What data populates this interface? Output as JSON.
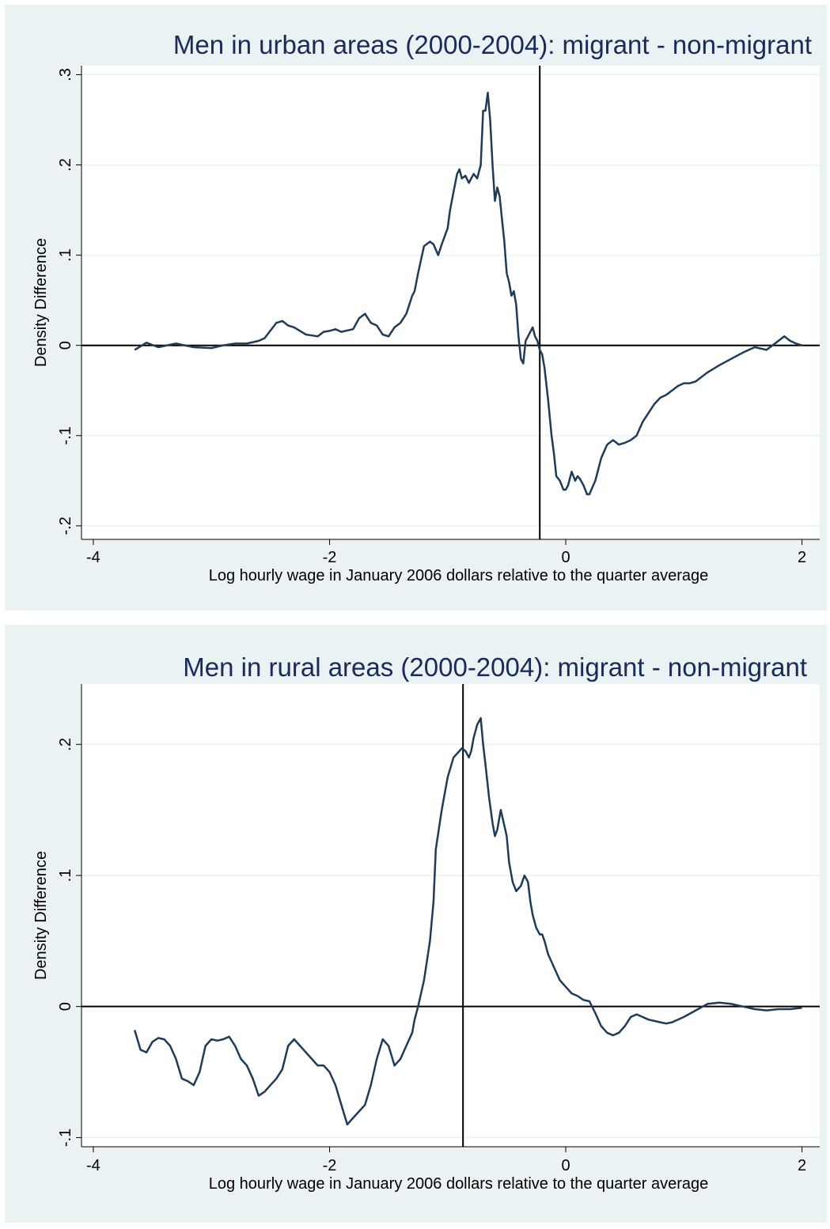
{
  "colors": {
    "background": "#eaf2f3",
    "plot": "#ffffff",
    "title": "#1a2a5a",
    "series": "#1f3b5a",
    "reference": "#000000"
  },
  "chart_data": [
    {
      "type": "line",
      "title": "Men in urban areas (2000-2004): migrant - non-migrant",
      "xlabel": "Log hourly wage in January 2006 dollars relative to the quarter average",
      "ylabel": "Density Difference",
      "xlim": [
        -4.1,
        2.15
      ],
      "ylim": [
        -0.215,
        0.31
      ],
      "xticks": [
        -4,
        -2,
        0,
        2
      ],
      "xtick_labels": [
        "-4",
        "-2",
        "0",
        "2"
      ],
      "yticks": [
        -0.2,
        -0.1,
        0,
        0.1,
        0.2,
        0.3
      ],
      "ytick_labels": [
        "-.2",
        "-.1",
        "0",
        ".1",
        ".2",
        ".3"
      ],
      "grid": true,
      "hline": 0,
      "vline": -0.22,
      "series": [
        {
          "x": [
            -3.65,
            -3.55,
            -3.45,
            -3.3,
            -3.15,
            -3.0,
            -2.9,
            -2.8,
            -2.7,
            -2.6,
            -2.55,
            -2.45,
            -2.4,
            -2.35,
            -2.3,
            -2.2,
            -2.1,
            -2.05,
            -2.0,
            -1.95,
            -1.9,
            -1.8,
            -1.75,
            -1.7,
            -1.65,
            -1.6,
            -1.55,
            -1.5,
            -1.45,
            -1.4,
            -1.35,
            -1.3,
            -1.28,
            -1.25,
            -1.2,
            -1.15,
            -1.12,
            -1.08,
            -1.05,
            -1.0,
            -0.98,
            -0.95,
            -0.92,
            -0.9,
            -0.88,
            -0.85,
            -0.82,
            -0.8,
            -0.78,
            -0.75,
            -0.72,
            -0.7,
            -0.68,
            -0.66,
            -0.64,
            -0.62,
            -0.6,
            -0.58,
            -0.56,
            -0.54,
            -0.52,
            -0.5,
            -0.48,
            -0.46,
            -0.44,
            -0.42,
            -0.4,
            -0.38,
            -0.36,
            -0.34,
            -0.32,
            -0.3,
            -0.28,
            -0.26,
            -0.24,
            -0.22,
            -0.2,
            -0.18,
            -0.15,
            -0.12,
            -0.1,
            -0.08,
            -0.05,
            -0.02,
            0.0,
            0.02,
            0.05,
            0.08,
            0.1,
            0.12,
            0.15,
            0.18,
            0.2,
            0.25,
            0.3,
            0.35,
            0.4,
            0.45,
            0.5,
            0.55,
            0.6,
            0.65,
            0.7,
            0.75,
            0.8,
            0.85,
            0.9,
            0.95,
            1.0,
            1.05,
            1.1,
            1.15,
            1.2,
            1.3,
            1.4,
            1.5,
            1.6,
            1.7,
            1.75,
            1.8,
            1.85,
            1.9,
            1.95,
            2.0
          ],
          "y": [
            -0.005,
            0.003,
            -0.002,
            0.002,
            -0.002,
            -0.003,
            0.0,
            0.002,
            0.002,
            0.005,
            0.008,
            0.025,
            0.027,
            0.022,
            0.02,
            0.012,
            0.01,
            0.015,
            0.016,
            0.018,
            0.015,
            0.018,
            0.03,
            0.035,
            0.025,
            0.022,
            0.012,
            0.01,
            0.02,
            0.025,
            0.035,
            0.055,
            0.06,
            0.08,
            0.11,
            0.115,
            0.112,
            0.1,
            0.112,
            0.13,
            0.15,
            0.17,
            0.19,
            0.195,
            0.185,
            0.188,
            0.18,
            0.185,
            0.19,
            0.185,
            0.2,
            0.26,
            0.26,
            0.28,
            0.25,
            0.2,
            0.16,
            0.175,
            0.165,
            0.14,
            0.115,
            0.08,
            0.07,
            0.055,
            0.06,
            0.045,
            0.01,
            -0.015,
            -0.02,
            0.005,
            0.01,
            0.015,
            0.02,
            0.01,
            0.005,
            -0.005,
            -0.01,
            -0.025,
            -0.06,
            -0.1,
            -0.12,
            -0.145,
            -0.15,
            -0.16,
            -0.16,
            -0.155,
            -0.14,
            -0.15,
            -0.145,
            -0.148,
            -0.155,
            -0.165,
            -0.165,
            -0.15,
            -0.125,
            -0.11,
            -0.105,
            -0.11,
            -0.108,
            -0.105,
            -0.1,
            -0.085,
            -0.075,
            -0.065,
            -0.058,
            -0.055,
            -0.05,
            -0.045,
            -0.042,
            -0.042,
            -0.04,
            -0.035,
            -0.03,
            -0.022,
            -0.015,
            -0.008,
            -0.002,
            -0.005,
            0.0,
            0.005,
            0.01,
            0.005,
            0.002,
            0.0
          ]
        }
      ]
    },
    {
      "type": "line",
      "title": "Men in rural areas (2000-2004): migrant - non-migrant",
      "xlabel": "Log hourly wage in January 2006 dollars relative to the quarter average",
      "ylabel": "Density Difference",
      "xlim": [
        -4.1,
        2.15
      ],
      "ylim": [
        -0.107,
        0.246
      ],
      "xticks": [
        -4,
        -2,
        0,
        2
      ],
      "xtick_labels": [
        "-4",
        "-2",
        "0",
        "2"
      ],
      "yticks": [
        -0.1,
        0,
        0.1,
        0.2
      ],
      "ytick_labels": [
        "-.1",
        "0",
        ".1",
        ".2"
      ],
      "grid": true,
      "hline": 0,
      "vline": -0.87,
      "series": [
        {
          "x": [
            -3.65,
            -3.6,
            -3.55,
            -3.5,
            -3.45,
            -3.4,
            -3.35,
            -3.3,
            -3.25,
            -3.2,
            -3.15,
            -3.1,
            -3.05,
            -3.0,
            -2.95,
            -2.9,
            -2.85,
            -2.8,
            -2.75,
            -2.7,
            -2.65,
            -2.6,
            -2.55,
            -2.5,
            -2.45,
            -2.4,
            -2.35,
            -2.3,
            -2.25,
            -2.2,
            -2.15,
            -2.1,
            -2.05,
            -2.0,
            -1.95,
            -1.9,
            -1.85,
            -1.8,
            -1.75,
            -1.7,
            -1.65,
            -1.6,
            -1.55,
            -1.5,
            -1.45,
            -1.4,
            -1.35,
            -1.3,
            -1.28,
            -1.25,
            -1.2,
            -1.15,
            -1.12,
            -1.1,
            -1.05,
            -1.0,
            -0.95,
            -0.9,
            -0.88,
            -0.85,
            -0.82,
            -0.8,
            -0.78,
            -0.75,
            -0.72,
            -0.7,
            -0.68,
            -0.65,
            -0.62,
            -0.6,
            -0.58,
            -0.55,
            -0.5,
            -0.48,
            -0.45,
            -0.42,
            -0.4,
            -0.38,
            -0.35,
            -0.32,
            -0.3,
            -0.28,
            -0.25,
            -0.22,
            -0.2,
            -0.18,
            -0.15,
            -0.1,
            -0.05,
            0.0,
            0.05,
            0.1,
            0.15,
            0.2,
            0.25,
            0.3,
            0.35,
            0.4,
            0.45,
            0.5,
            0.55,
            0.6,
            0.65,
            0.7,
            0.75,
            0.8,
            0.85,
            0.9,
            1.0,
            1.1,
            1.2,
            1.3,
            1.4,
            1.5,
            1.6,
            1.7,
            1.8,
            1.9,
            2.0
          ],
          "y": [
            -0.018,
            -0.033,
            -0.035,
            -0.027,
            -0.024,
            -0.025,
            -0.03,
            -0.04,
            -0.055,
            -0.057,
            -0.06,
            -0.05,
            -0.03,
            -0.025,
            -0.026,
            -0.025,
            -0.023,
            -0.03,
            -0.04,
            -0.045,
            -0.055,
            -0.068,
            -0.065,
            -0.06,
            -0.055,
            -0.048,
            -0.03,
            -0.025,
            -0.03,
            -0.035,
            -0.04,
            -0.045,
            -0.045,
            -0.05,
            -0.06,
            -0.075,
            -0.09,
            -0.085,
            -0.08,
            -0.075,
            -0.06,
            -0.04,
            -0.025,
            -0.03,
            -0.045,
            -0.04,
            -0.03,
            -0.02,
            -0.01,
            0.0,
            0.02,
            0.05,
            0.08,
            0.12,
            0.15,
            0.175,
            0.19,
            0.195,
            0.197,
            0.195,
            0.19,
            0.195,
            0.205,
            0.215,
            0.22,
            0.2,
            0.185,
            0.16,
            0.14,
            0.13,
            0.135,
            0.15,
            0.13,
            0.11,
            0.095,
            0.088,
            0.09,
            0.092,
            0.1,
            0.095,
            0.08,
            0.07,
            0.06,
            0.055,
            0.055,
            0.05,
            0.04,
            0.03,
            0.02,
            0.015,
            0.01,
            0.008,
            0.005,
            0.004,
            -0.005,
            -0.015,
            -0.02,
            -0.022,
            -0.02,
            -0.015,
            -0.008,
            -0.006,
            -0.008,
            -0.01,
            -0.011,
            -0.012,
            -0.013,
            -0.012,
            -0.008,
            -0.003,
            0.002,
            0.003,
            0.002,
            0.0,
            -0.002,
            -0.003,
            -0.002,
            -0.002,
            -0.001
          ]
        }
      ]
    }
  ]
}
